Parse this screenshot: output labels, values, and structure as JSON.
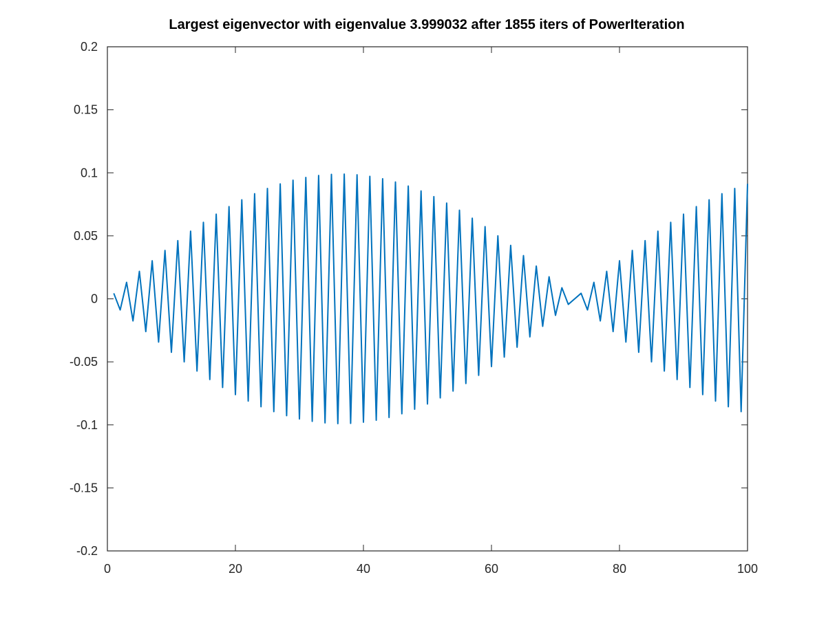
{
  "chart_data": {
    "type": "line",
    "title": "Largest eigenvector with eigenvalue 3.999032 after 1855 iters of PowerIteration",
    "xlabel": "",
    "ylabel": "",
    "xlim": [
      0,
      100
    ],
    "ylim": [
      -0.2,
      0.2
    ],
    "xticks": [
      0,
      20,
      40,
      60,
      80,
      100
    ],
    "yticks": [
      -0.2,
      -0.15,
      -0.1,
      -0.05,
      0,
      0.05,
      0.1,
      0.15,
      0.2
    ],
    "xtick_labels": [
      "0",
      "20",
      "40",
      "60",
      "80",
      "100"
    ],
    "ytick_labels": [
      "-0.2",
      "-0.15",
      "-0.1",
      "-0.05",
      "0",
      "0.05",
      "0.1",
      "0.15",
      "0.2"
    ],
    "grid": false,
    "legend": "none",
    "series": [
      {
        "color": "#0072bd",
        "x": [
          1,
          2,
          3,
          4,
          5,
          6,
          7,
          8,
          9,
          10,
          11,
          12,
          13,
          14,
          15,
          16,
          17,
          18,
          19,
          20,
          21,
          22,
          23,
          24,
          25,
          26,
          27,
          28,
          29,
          30,
          31,
          32,
          33,
          34,
          35,
          36,
          37,
          38,
          39,
          40,
          41,
          42,
          43,
          44,
          45,
          46,
          47,
          48,
          49,
          50,
          51,
          52,
          53,
          54,
          55,
          56,
          57,
          58,
          59,
          60,
          61,
          62,
          63,
          64,
          65,
          66,
          67,
          68,
          69,
          70,
          71,
          72,
          73,
          74,
          75,
          76,
          77,
          78,
          79,
          80,
          81,
          82,
          83,
          84,
          85,
          86,
          87,
          88,
          89,
          90,
          91,
          92,
          93,
          94,
          95,
          96,
          97,
          98,
          99,
          100
        ],
        "y": [
          0.0044,
          -0.0088,
          0.0131,
          -0.0175,
          0.0218,
          -0.026,
          0.0302,
          -0.0343,
          0.0384,
          -0.0424,
          0.0462,
          -0.05,
          0.0537,
          -0.0573,
          0.0607,
          -0.064,
          0.0672,
          -0.0703,
          0.0732,
          -0.076,
          0.0786,
          -0.0811,
          0.0834,
          -0.0856,
          0.0876,
          -0.0895,
          0.0912,
          -0.0927,
          0.0941,
          -0.0953,
          0.0963,
          -0.0972,
          0.0979,
          -0.0984,
          0.0988,
          -0.099,
          0.099,
          -0.0988,
          0.0984,
          -0.0979,
          0.0972,
          -0.0963,
          0.0953,
          -0.0941,
          0.0927,
          -0.0912,
          0.0895,
          -0.0876,
          0.0856,
          -0.0834,
          0.0811,
          -0.0786,
          0.076,
          -0.0732,
          0.0703,
          -0.0672,
          0.064,
          -0.0607,
          0.0573,
          -0.0537,
          0.05,
          -0.0462,
          0.0424,
          -0.0384,
          0.0343,
          -0.0302,
          0.026,
          -0.0218,
          0.0175,
          -0.0131,
          0.0088,
          -0.0044,
          0.0,
          0.0044,
          -0.0088,
          0.0131,
          -0.0175,
          0.0218,
          -0.026,
          0.0302,
          -0.0343,
          0.0384,
          -0.0424,
          0.0462,
          -0.05,
          0.0537,
          -0.0573,
          0.0607,
          -0.064,
          0.0672,
          -0.0703,
          0.0732,
          -0.076,
          0.0786,
          -0.0811,
          0.0834,
          -0.0856,
          0.0876,
          -0.0895,
          0.0912
        ]
      }
    ]
  }
}
